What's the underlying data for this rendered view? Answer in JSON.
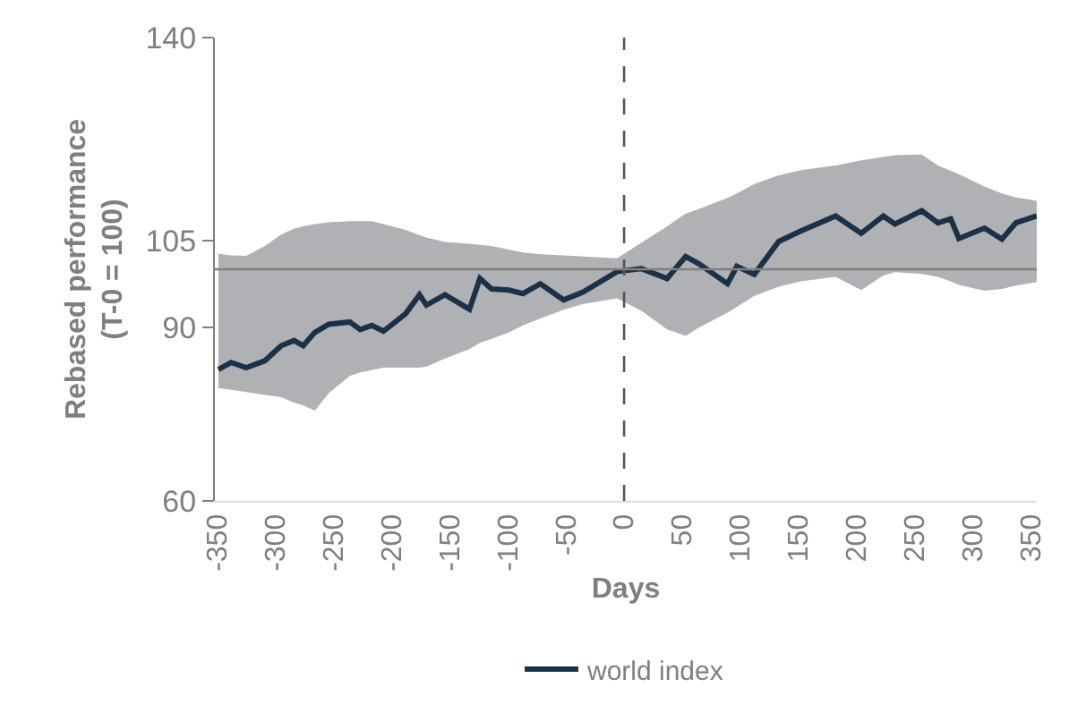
{
  "chart_data": {
    "type": "line",
    "xlabel": "Days",
    "ylabel": "Rebased performance\n(T-0 = 100)",
    "xlim": [
      -352,
      355
    ],
    "xticks": [
      -350,
      -300,
      -250,
      -200,
      -150,
      -100,
      -50,
      0,
      50,
      100,
      150,
      200,
      250,
      300,
      350
    ],
    "ylim": [
      60,
      140
    ],
    "yticks": [
      60,
      90,
      105,
      140
    ],
    "legend": "bottom",
    "marker": "none",
    "line_style": "solid",
    "ref_lines": [
      {
        "axis": "x",
        "value": 0,
        "label": null,
        "color": "#555555",
        "line_style": "dashed"
      },
      {
        "axis": "y",
        "value": 100,
        "label": null,
        "color": "#808080",
        "line_style": "solid"
      }
    ],
    "series": [
      {
        "name": "world index",
        "color": "#1b3148",
        "x": [
          -349,
          -338,
          -325,
          -309,
          -295,
          -284,
          -276,
          -266,
          -254,
          -236,
          -227,
          -217,
          -207,
          -188,
          -176,
          -170,
          -154,
          -133,
          -124,
          -114,
          -99,
          -87,
          -72,
          -52,
          -35,
          -6,
          15,
          37,
          53,
          64,
          89,
          97,
          112,
          133,
          152,
          182,
          204,
          223,
          233,
          256,
          270,
          281,
          288,
          310,
          325,
          337,
          355
        ],
        "values": [
          82.7,
          83.9,
          83.0,
          84.2,
          86.8,
          87.7,
          86.8,
          89.1,
          90.5,
          90.9,
          89.6,
          90.3,
          89.3,
          92.3,
          95.6,
          93.8,
          95.6,
          93.1,
          98.4,
          96.6,
          96.4,
          95.8,
          97.5,
          94.7,
          96.1,
          99.6,
          100.1,
          98.4,
          102.2,
          101.0,
          97.5,
          100.5,
          99.1,
          104.8,
          106.6,
          109.2,
          106.2,
          109.2,
          107.8,
          110.1,
          108.0,
          108.7,
          105.3,
          107.1,
          105.2,
          108.0,
          109.2
        ],
        "upper": [
          102.7,
          102.4,
          102.3,
          104.0,
          106.0,
          107.0,
          107.4,
          107.8,
          108.1,
          108.3,
          108.3,
          108.3,
          107.8,
          106.8,
          105.9,
          105.5,
          104.7,
          104.4,
          104.2,
          104.0,
          103.4,
          102.9,
          102.6,
          102.4,
          102.2,
          101.9,
          104.6,
          107.4,
          109.6,
          110.4,
          112.3,
          113.1,
          114.7,
          116.2,
          117.1,
          117.9,
          118.8,
          119.4,
          119.7,
          119.8,
          117.9,
          117.0,
          116.4,
          114.3,
          113.1,
          112.4,
          111.8
        ],
        "lower": [
          79.5,
          79.2,
          78.8,
          78.3,
          77.9,
          77.0,
          76.5,
          75.6,
          78.6,
          81.6,
          82.2,
          82.6,
          83.0,
          83.0,
          83.0,
          83.2,
          84.6,
          86.2,
          87.3,
          88.0,
          89.1,
          90.3,
          91.5,
          93.0,
          94.0,
          95.0,
          92.8,
          89.6,
          88.5,
          89.9,
          92.5,
          93.5,
          95.4,
          97.0,
          97.9,
          98.7,
          96.4,
          98.9,
          99.5,
          99.2,
          98.7,
          97.9,
          97.3,
          96.3,
          96.6,
          97.2,
          97.8
        ]
      }
    ]
  }
}
